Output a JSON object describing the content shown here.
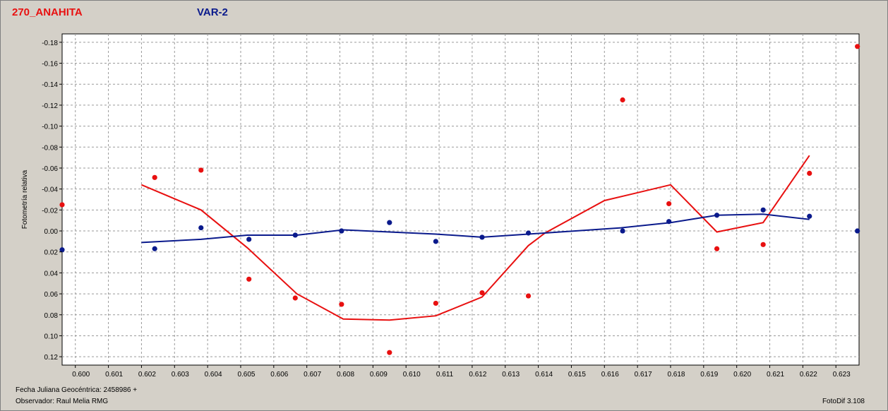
{
  "header": {
    "object_label": "270_ANAHITA",
    "variable_label": "VAR-2"
  },
  "footer": {
    "date_label": "Fecha Juliana Geocéntrica: 2458986 +",
    "observer_label": "Observador: Raul Melia RMG",
    "software_label": "FotoDif 3.108"
  },
  "colors": {
    "object": "#e81010",
    "variable": "#0a1a8c",
    "plot_bg": "#ffffff",
    "grid": "#9a9a9a"
  },
  "chart_data": {
    "type": "scatter",
    "title": "",
    "xlabel": "",
    "ylabel": "Fotometría relativa",
    "xlim": [
      0.5996,
      0.6237
    ],
    "ylim": [
      -0.188,
      0.128
    ],
    "y_inverted": true,
    "grid": true,
    "x_ticks": [
      0.6,
      0.601,
      0.602,
      0.603,
      0.604,
      0.605,
      0.606,
      0.607,
      0.608,
      0.609,
      0.61,
      0.611,
      0.612,
      0.613,
      0.614,
      0.615,
      0.616,
      0.617,
      0.618,
      0.619,
      0.62,
      0.621,
      0.622,
      0.623
    ],
    "x_tick_labels": [
      "0.600",
      "0.601",
      "0.602",
      "0.603",
      "0.604",
      "0.605",
      "0.606",
      "0.607",
      "0.608",
      "0.609",
      "0.610",
      "0.611",
      "0.612",
      "0.613",
      "0.614",
      "0.615",
      "0.616",
      "0.617",
      "0.618",
      "0.619",
      "0.620",
      "0.621",
      "0.622",
      "0.623"
    ],
    "y_ticks": [
      -0.18,
      -0.16,
      -0.14,
      -0.12,
      -0.1,
      -0.08,
      -0.06,
      -0.04,
      -0.02,
      0.0,
      0.02,
      0.04,
      0.06,
      0.08,
      0.1,
      0.12
    ],
    "y_tick_labels": [
      "-0.18",
      "-0.16",
      "-0.14",
      "-0.12",
      "-0.10",
      "-0.08",
      "-0.06",
      "-0.04",
      "-0.02",
      "0.00",
      "0.02",
      "0.04",
      "0.06",
      "0.08",
      "0.10",
      "0.12"
    ],
    "series": [
      {
        "name": "270_ANAHITA",
        "color": "#e81010",
        "points": [
          [
            0.5996,
            -0.025
          ],
          [
            0.6024,
            -0.051
          ],
          [
            0.6038,
            -0.058
          ],
          [
            0.60525,
            0.046
          ],
          [
            0.60665,
            0.064
          ],
          [
            0.60805,
            0.07
          ],
          [
            0.6095,
            0.116
          ],
          [
            0.6109,
            0.069
          ],
          [
            0.6123,
            0.059
          ],
          [
            0.6137,
            0.062
          ],
          [
            0.61655,
            -0.125
          ],
          [
            0.61795,
            -0.026
          ],
          [
            0.6194,
            0.017
          ],
          [
            0.6208,
            0.013
          ],
          [
            0.6222,
            -0.055
          ],
          [
            0.62365,
            -0.176
          ]
        ],
        "fit": [
          [
            0.602,
            -0.044
          ],
          [
            0.6038,
            -0.02
          ],
          [
            0.6052,
            0.016
          ],
          [
            0.6067,
            0.06
          ],
          [
            0.6081,
            0.084
          ],
          [
            0.6095,
            0.085
          ],
          [
            0.6109,
            0.081
          ],
          [
            0.6123,
            0.063
          ],
          [
            0.6137,
            0.014
          ],
          [
            0.6142,
            0.002
          ],
          [
            0.616,
            -0.029
          ],
          [
            0.618,
            -0.044
          ],
          [
            0.6194,
            0.001
          ],
          [
            0.6208,
            -0.008
          ],
          [
            0.6222,
            -0.072
          ]
        ]
      },
      {
        "name": "VAR-2",
        "color": "#0a1a8c",
        "points": [
          [
            0.5996,
            0.018
          ],
          [
            0.6024,
            0.017
          ],
          [
            0.6038,
            -0.003
          ],
          [
            0.60525,
            0.008
          ],
          [
            0.60665,
            0.004
          ],
          [
            0.60805,
            0.0
          ],
          [
            0.6095,
            -0.008
          ],
          [
            0.6109,
            0.01
          ],
          [
            0.6123,
            0.006
          ],
          [
            0.6137,
            0.002
          ],
          [
            0.61655,
            0.0
          ],
          [
            0.61795,
            -0.009
          ],
          [
            0.6194,
            -0.015
          ],
          [
            0.6208,
            -0.02
          ],
          [
            0.6222,
            -0.014
          ],
          [
            0.62365,
            0.0
          ]
        ],
        "fit": [
          [
            0.602,
            0.011
          ],
          [
            0.6038,
            0.008
          ],
          [
            0.6052,
            0.004
          ],
          [
            0.6067,
            0.004
          ],
          [
            0.6081,
            -0.001
          ],
          [
            0.6109,
            0.003
          ],
          [
            0.6123,
            0.006
          ],
          [
            0.6137,
            0.003
          ],
          [
            0.6165,
            -0.003
          ],
          [
            0.618,
            -0.008
          ],
          [
            0.6194,
            -0.015
          ],
          [
            0.6208,
            -0.016
          ],
          [
            0.6222,
            -0.011
          ]
        ]
      }
    ]
  }
}
